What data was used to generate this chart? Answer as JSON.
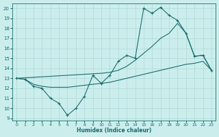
{
  "xlabel": "Humidex (Indice chaleur)",
  "xlim": [
    -0.5,
    23.5
  ],
  "ylim": [
    8.8,
    20.5
  ],
  "yticks": [
    9,
    10,
    11,
    12,
    13,
    14,
    15,
    16,
    17,
    18,
    19,
    20
  ],
  "xticks": [
    0,
    1,
    2,
    3,
    4,
    5,
    6,
    7,
    8,
    9,
    10,
    11,
    12,
    13,
    14,
    15,
    16,
    17,
    18,
    19,
    20,
    21,
    22,
    23
  ],
  "bg_color": "#cbeeed",
  "grid_color": "#aed8d6",
  "line_color": "#1a6b6b",
  "line1_x": [
    0,
    1,
    2,
    3,
    4,
    5,
    6,
    7,
    8,
    9,
    10,
    11,
    12,
    13,
    14,
    15,
    16,
    17,
    18,
    19,
    20,
    21,
    22,
    23
  ],
  "line1_y": [
    13.0,
    12.9,
    12.2,
    12.0,
    11.0,
    10.5,
    9.3,
    10.0,
    11.2,
    13.3,
    12.5,
    13.3,
    14.7,
    15.3,
    15.0,
    20.0,
    19.5,
    20.1,
    19.3,
    18.8,
    17.5,
    15.2,
    15.3,
    13.8
  ],
  "line2_x": [
    0,
    10,
    11,
    12,
    13,
    14,
    15,
    16,
    17,
    18,
    19,
    20,
    21,
    22,
    23
  ],
  "line2_y": [
    13.0,
    13.5,
    13.6,
    13.8,
    14.2,
    14.8,
    15.5,
    16.2,
    17.0,
    17.5,
    18.5,
    17.5,
    15.2,
    15.3,
    13.8
  ],
  "line3_x": [
    0,
    1,
    2,
    3,
    4,
    5,
    6,
    7,
    8,
    9,
    10,
    11,
    12,
    13,
    14,
    15,
    16,
    17,
    18,
    19,
    20,
    21,
    22,
    23
  ],
  "line3_y": [
    13.0,
    12.9,
    12.4,
    12.2,
    12.1,
    12.1,
    12.1,
    12.2,
    12.3,
    12.4,
    12.5,
    12.6,
    12.8,
    13.0,
    13.2,
    13.4,
    13.6,
    13.8,
    14.0,
    14.2,
    14.4,
    14.5,
    14.7,
    13.8
  ]
}
